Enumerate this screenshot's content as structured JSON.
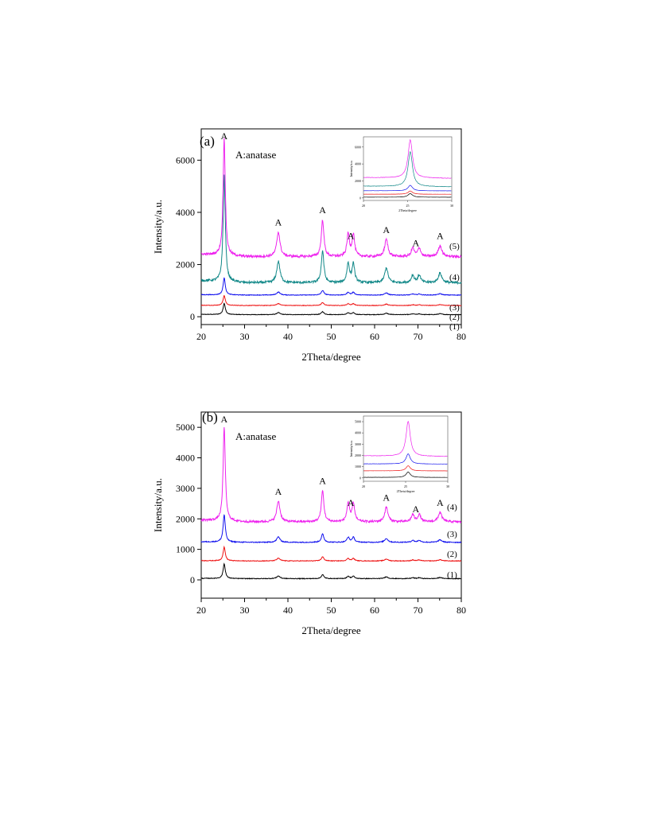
{
  "chart_data": [
    {
      "type": "line",
      "panel_label": "(a)",
      "annotation": "A:anatase",
      "peak_marker": "A",
      "peak_positions": [
        25.3,
        37.8,
        48.0,
        54.0,
        62.7,
        68.8,
        75.0
      ],
      "xlabel": "2Theta/degree",
      "ylabel": "Intensity/a.u.",
      "xlim": [
        20,
        80
      ],
      "ylim": [
        -300,
        7200
      ],
      "xticks": [
        20,
        30,
        40,
        50,
        60,
        70,
        80
      ],
      "yticks": [
        0,
        2000,
        4000,
        6000
      ],
      "series": [
        {
          "name": "(1)",
          "color": "#000000",
          "baseline": 80,
          "peak_height": 430,
          "minor_scale": 0.18
        },
        {
          "name": "(2)",
          "color": "#ee1111",
          "baseline": 430,
          "peak_height": 380,
          "minor_scale": 0.2
        },
        {
          "name": "(3)",
          "color": "#1111ee",
          "baseline": 830,
          "peak_height": 650,
          "minor_scale": 0.18
        },
        {
          "name": "(4)",
          "color": "#118888",
          "baseline": 1300,
          "peak_height": 4100,
          "minor_scale": 0.2
        },
        {
          "name": "(5)",
          "color": "#ee22ee",
          "baseline": 2300,
          "peak_height": 4500,
          "minor_scale": 0.21
        }
      ],
      "inset": {
        "xlabel": "2Theta/degree",
        "ylabel": "Intensity/a.u.",
        "xlim": [
          20,
          30
        ],
        "ylim": [
          -300,
          7200
        ],
        "xticks": [
          20,
          25,
          30
        ],
        "yticks": [
          0,
          2000,
          4000,
          6000
        ]
      }
    },
    {
      "type": "line",
      "panel_label": "(b)",
      "annotation": "A:anatase",
      "peak_marker": "A",
      "peak_positions": [
        25.3,
        37.8,
        48.0,
        54.0,
        62.7,
        68.8,
        75.0
      ],
      "xlabel": "2Theta/degree",
      "ylabel": "Intensity/a.u.",
      "xlim": [
        20,
        80
      ],
      "ylim": [
        -600,
        5500
      ],
      "xticks": [
        20,
        30,
        40,
        50,
        60,
        70,
        80
      ],
      "yticks": [
        0,
        1000,
        2000,
        3000,
        4000,
        5000
      ],
      "series": [
        {
          "name": "(1)",
          "color": "#000000",
          "baseline": 40,
          "peak_height": 480,
          "minor_scale": 0.18
        },
        {
          "name": "(2)",
          "color": "#ee1111",
          "baseline": 620,
          "peak_height": 450,
          "minor_scale": 0.2
        },
        {
          "name": "(3)",
          "color": "#1111ee",
          "baseline": 1230,
          "peak_height": 900,
          "minor_scale": 0.2
        },
        {
          "name": "(4)",
          "color": "#ee22ee",
          "baseline": 1900,
          "peak_height": 3100,
          "minor_scale": 0.22
        }
      ],
      "inset": {
        "xlabel": "2Theta/degree",
        "ylabel": "Intensity/a.u.",
        "xlim": [
          20,
          30
        ],
        "ylim": [
          -300,
          5500
        ],
        "xticks": [
          20,
          25,
          30
        ],
        "yticks": [
          0,
          1000,
          2000,
          3000,
          4000,
          5000
        ]
      }
    }
  ]
}
